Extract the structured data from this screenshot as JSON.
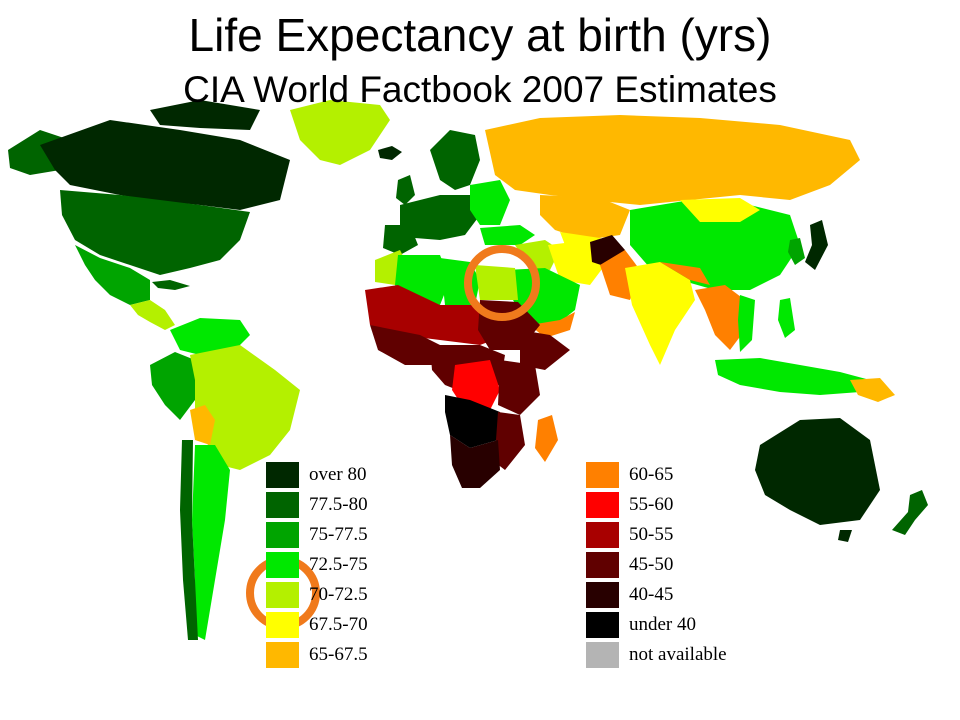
{
  "title": "Life Expectancy at birth (yrs)",
  "subtitle": "CIA World Factbook 2007 Estimates",
  "colors": {
    "ocean": "#ffffff",
    "highlight_ring": "#f07a1c",
    "over_80": "#002800",
    "r77_5_80": "#006400",
    "r75_77_5": "#00a400",
    "r72_5_75": "#00e800",
    "r70_72_5": "#b4f000",
    "r67_5_70": "#ffff00",
    "r65_67_5": "#ffb800",
    "r60_65": "#ff8000",
    "r55_60": "#ff0000",
    "r50_55": "#a80000",
    "r45_50": "#600000",
    "r40_45": "#280000",
    "under_40": "#000000",
    "not_available": "#b4b4b4"
  },
  "legend": {
    "left": [
      {
        "label": "over 80",
        "color": "#002800"
      },
      {
        "label": "77.5-80",
        "color": "#006400"
      },
      {
        "label": "75-77.5",
        "color": "#00a400"
      },
      {
        "label": "72.5-75",
        "color": "#00e800"
      },
      {
        "label": "70-72.5",
        "color": "#b4f000"
      },
      {
        "label": "67.5-70",
        "color": "#ffff00"
      },
      {
        "label": "65-67.5",
        "color": "#ffb800"
      }
    ],
    "right": [
      {
        "label": "60-65",
        "color": "#ff8000"
      },
      {
        "label": "55-60",
        "color": "#ff0000"
      },
      {
        "label": "50-55",
        "color": "#a80000"
      },
      {
        "label": "45-50",
        "color": "#600000"
      },
      {
        "label": "40-45",
        "color": "#280000"
      },
      {
        "label": "under 40",
        "color": "#000000"
      },
      {
        "label": "not available",
        "color": "#b4b4b4"
      }
    ]
  },
  "highlights": [
    {
      "target": "Egypt",
      "color_band": "70-72.5"
    },
    {
      "target": "legend-70-72.5",
      "color_band": "70-72.5"
    }
  ]
}
